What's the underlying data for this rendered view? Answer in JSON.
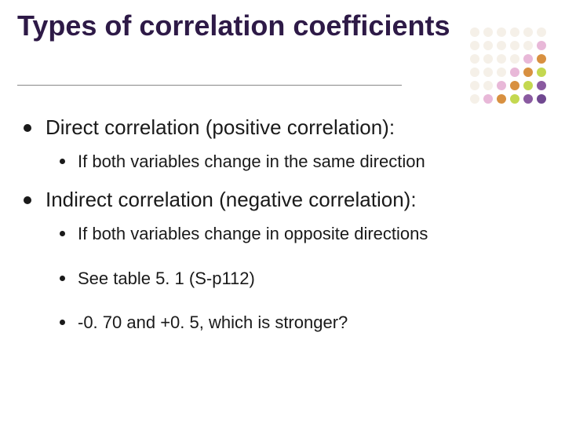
{
  "title": "Types of correlation coefficients",
  "title_color": "#2e1a47",
  "title_fontsize": 36,
  "body_color": "#1a1a1a",
  "level1_fontsize": 26,
  "level2_fontsize": 22,
  "background_color": "#ffffff",
  "rule_color": "#888888",
  "bullets": {
    "item1": {
      "text": "Direct correlation (positive correlation):",
      "sub": [
        "If both variables change in the same direction"
      ]
    },
    "item2": {
      "text": "Indirect correlation (negative correlation):",
      "sub": [
        "If both variables change in opposite directions",
        "See table 5. 1 (S-p112)",
        "-0. 70 and +0. 5, which is stronger?"
      ]
    }
  },
  "decorative_dots": {
    "rows": 6,
    "cols": 6,
    "dot_size": 12,
    "gap": 3,
    "colors": [
      [
        "#f5f0e8",
        "#f5f0e8",
        "#f5f0e8",
        "#f5f0e8",
        "#f5f0e8",
        "#f5f0e8"
      ],
      [
        "#f5f0e8",
        "#f5f0e8",
        "#f5f0e8",
        "#f5f0e8",
        "#f5f0e8",
        "#e8b8d8"
      ],
      [
        "#f5f0e8",
        "#f5f0e8",
        "#f5f0e8",
        "#f5f0e8",
        "#e8b8d8",
        "#d89040"
      ],
      [
        "#f5f0e8",
        "#f5f0e8",
        "#f5f0e8",
        "#e8b8d8",
        "#d89040",
        "#c4d850"
      ],
      [
        "#f5f0e8",
        "#f5f0e8",
        "#e8b8d8",
        "#d89040",
        "#c4d850",
        "#8a5aa0"
      ],
      [
        "#f5f0e8",
        "#e8b8d8",
        "#d89040",
        "#c4d850",
        "#8a5aa0",
        "#704890"
      ]
    ]
  }
}
